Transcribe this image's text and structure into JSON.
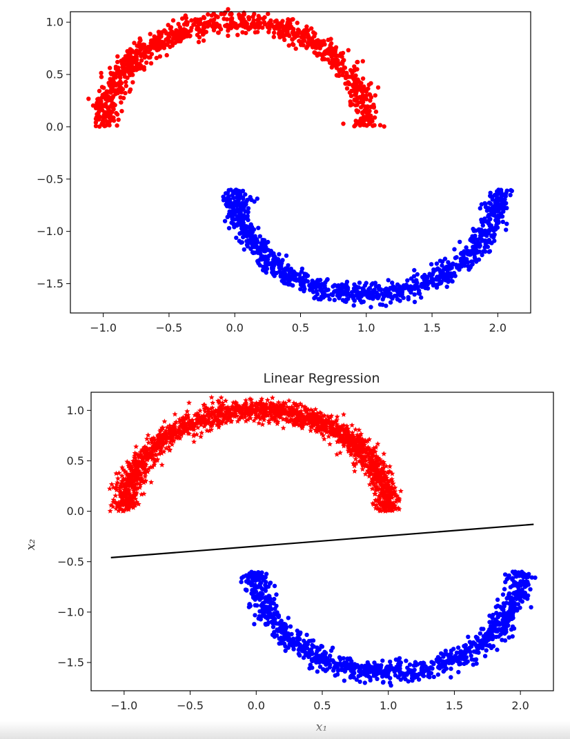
{
  "colors": {
    "class_0": "#ff0000",
    "class_1": "#0000ff",
    "boundary": "#000000",
    "axes": "#000000"
  },
  "chart_data": [
    {
      "type": "scatter",
      "title": "",
      "xlabel": "",
      "ylabel": "",
      "xlim": [
        -1.25,
        2.25
      ],
      "ylim": [
        -1.78,
        1.1
      ],
      "xticks": [
        -1.0,
        -0.5,
        0.0,
        0.5,
        1.0,
        1.5,
        2.0
      ],
      "yticks": [
        1.0,
        0.5,
        0.0,
        -0.5,
        -1.0,
        -1.5
      ],
      "xtick_labels": [
        "−1.0",
        "−0.5",
        "0.0",
        "0.5",
        "1.0",
        "1.5",
        "2.0"
      ],
      "ytick_labels": [
        "1.0",
        "0.5",
        "0.0",
        "−0.5",
        "−1.0",
        "−1.5"
      ],
      "series": [
        {
          "color": "#ff0000",
          "marker": "circle",
          "shape": "upper half-moon",
          "center": [
            0.0,
            0.0
          ],
          "radius": 1.0,
          "noise": 0.05,
          "point_count": 1000
        },
        {
          "color": "#0000ff",
          "marker": "circle",
          "shape": "lower half-moon",
          "center": [
            1.0,
            -0.6
          ],
          "radius": 1.0,
          "noise": 0.05,
          "point_count": 1000
        }
      ]
    },
    {
      "type": "scatter",
      "title": "Linear Regression",
      "xlabel": "x₁",
      "ylabel": "x₂",
      "xlim": [
        -1.25,
        2.25
      ],
      "ylim": [
        -1.78,
        1.18
      ],
      "xticks": [
        -1.0,
        -0.5,
        0.0,
        0.5,
        1.0,
        1.5,
        2.0
      ],
      "yticks": [
        1.0,
        0.5,
        0.0,
        -0.5,
        -1.0,
        -1.5
      ],
      "xtick_labels": [
        "−1.0",
        "−0.5",
        "0.0",
        "0.5",
        "1.0",
        "1.5",
        "2.0"
      ],
      "ytick_labels": [
        "1.0",
        "0.5",
        "0.0",
        "−0.5",
        "−1.0",
        "−1.5"
      ],
      "series": [
        {
          "color": "#ff0000",
          "marker": "star",
          "shape": "upper half-moon",
          "center": [
            0.0,
            0.0
          ],
          "radius": 1.0,
          "noise": 0.05,
          "point_count": 2000
        },
        {
          "color": "#0000ff",
          "marker": "circle",
          "shape": "lower half-moon",
          "center": [
            1.0,
            -0.6
          ],
          "radius": 1.0,
          "noise": 0.05,
          "point_count": 1000
        }
      ],
      "line": {
        "color": "#000000",
        "x": [
          -1.1,
          2.1
        ],
        "y": [
          -0.46,
          -0.13
        ]
      }
    }
  ]
}
